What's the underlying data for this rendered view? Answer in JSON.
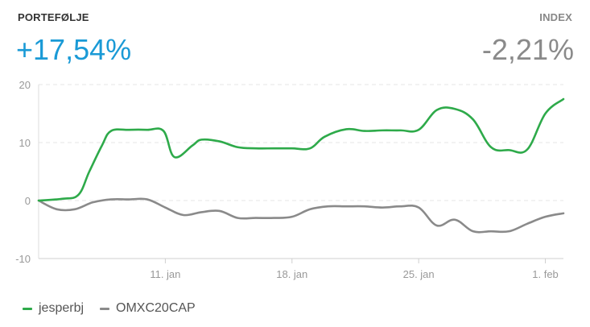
{
  "portfolio": {
    "label": "PORTEFØLJE",
    "value": "+17,54%",
    "color": "#1a9ad6"
  },
  "index": {
    "label": "INDEX",
    "value": "-2,21%",
    "color": "#8a8a8a"
  },
  "chart_data": {
    "type": "line",
    "title": "",
    "xlabel": "",
    "ylabel": "",
    "ylim": [
      -10,
      20
    ],
    "yticks": [
      -10,
      0,
      10,
      20
    ],
    "xlim": [
      0,
      29
    ],
    "xticks": [
      {
        "x": 7,
        "label": "11. jan"
      },
      {
        "x": 14,
        "label": "18. jan"
      },
      {
        "x": 21,
        "label": "25. jan"
      },
      {
        "x": 28,
        "label": "1. feb"
      }
    ],
    "grid": true,
    "legend_position": "bottom-left",
    "series": [
      {
        "name": "jesperbj",
        "color": "#2eaa4a",
        "x": [
          0,
          1.3,
          2.2,
          2.8,
          3.5,
          4,
          5,
          6,
          6.9,
          7.5,
          8.5,
          9,
          10,
          11,
          12,
          13,
          14,
          15,
          15.8,
          17,
          18,
          19,
          20,
          21,
          22,
          23,
          24,
          25,
          26,
          27,
          28,
          29
        ],
        "values": [
          0,
          0.3,
          1,
          5,
          9.5,
          12,
          12.2,
          12.2,
          12,
          7.5,
          9.5,
          10.5,
          10.2,
          9.2,
          9,
          9,
          9,
          9,
          11,
          12.3,
          12,
          12.1,
          12.1,
          12.2,
          15.6,
          15.8,
          14,
          9.2,
          8.7,
          8.8,
          15,
          17.5
        ]
      },
      {
        "name": "OMXC20CAP",
        "color": "#8a8a8a",
        "x": [
          0,
          1,
          2,
          3,
          4,
          5,
          6,
          7,
          8,
          9,
          10,
          11,
          12,
          13,
          14,
          15,
          16,
          17,
          18,
          19,
          20,
          21,
          22,
          23,
          24,
          25,
          26,
          27,
          28,
          29
        ],
        "values": [
          0,
          -1.5,
          -1.5,
          -0.3,
          0.2,
          0.2,
          0.2,
          -1.2,
          -2.5,
          -2,
          -1.8,
          -3,
          -3,
          -3,
          -2.8,
          -1.5,
          -1,
          -1,
          -1,
          -1.2,
          -1,
          -1.2,
          -4.3,
          -3.3,
          -5.3,
          -5.3,
          -5.3,
          -4,
          -2.8,
          -2.2
        ]
      }
    ]
  }
}
